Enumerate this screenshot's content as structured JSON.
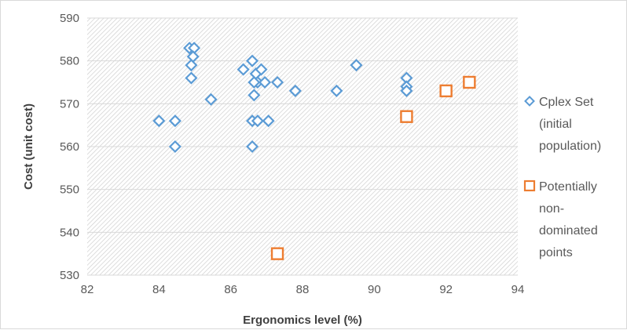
{
  "chart_data": {
    "type": "scatter",
    "xlabel": "Ergonomics level (%)",
    "ylabel": "Cost (unit cost)",
    "xlim": [
      82,
      94
    ],
    "ylim": [
      530,
      590
    ],
    "xticks": [
      82,
      84,
      86,
      88,
      90,
      92,
      94
    ],
    "yticks": [
      530,
      540,
      550,
      560,
      570,
      580,
      590
    ],
    "grid": true,
    "legend_position": "right",
    "series": [
      {
        "name": "Cplex Set (initial population)",
        "legend_lines": [
          "Cplex Set",
          "(initial",
          "population)"
        ],
        "marker": "diamond",
        "color": "#5b9bd5",
        "points": [
          [
            84.85,
            583
          ],
          [
            84.98,
            583
          ],
          [
            84.95,
            581
          ],
          [
            84.9,
            579
          ],
          [
            84.9,
            576
          ],
          [
            85.45,
            571
          ],
          [
            84.0,
            566
          ],
          [
            84.45,
            566
          ],
          [
            84.45,
            560
          ],
          [
            86.35,
            578
          ],
          [
            86.6,
            580
          ],
          [
            86.7,
            577
          ],
          [
            86.85,
            578
          ],
          [
            86.75,
            575
          ],
          [
            86.95,
            575
          ],
          [
            87.3,
            575
          ],
          [
            86.65,
            575
          ],
          [
            86.65,
            572
          ],
          [
            86.6,
            566
          ],
          [
            86.75,
            566
          ],
          [
            87.05,
            566
          ],
          [
            86.6,
            560
          ],
          [
            87.8,
            573
          ],
          [
            88.95,
            573
          ],
          [
            89.5,
            579
          ],
          [
            90.9,
            576
          ],
          [
            90.9,
            574
          ],
          [
            90.9,
            573
          ]
        ]
      },
      {
        "name": "Potentially non-dominated points",
        "legend_lines": [
          "Potentially",
          "non-",
          "dominated",
          "points"
        ],
        "marker": "square",
        "color": "#ed7d31",
        "points": [
          [
            87.3,
            535
          ],
          [
            90.9,
            567
          ],
          [
            92.0,
            573
          ],
          [
            92.65,
            575
          ]
        ]
      }
    ]
  }
}
